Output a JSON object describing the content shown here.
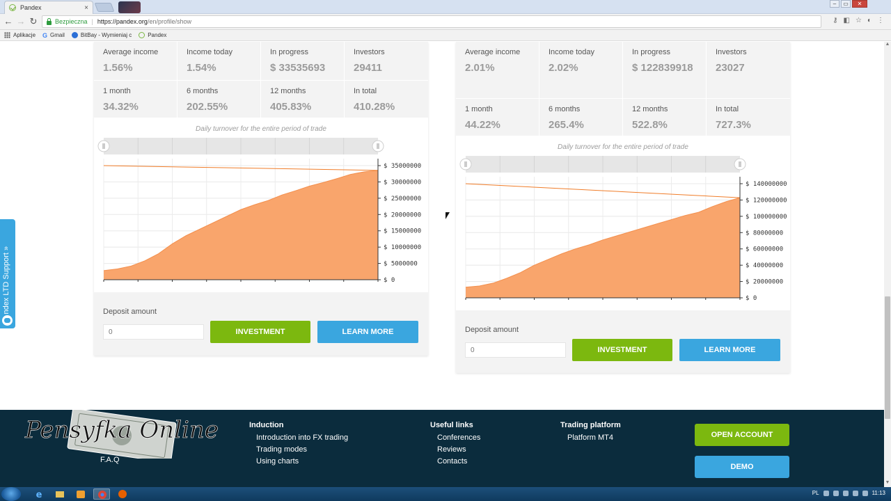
{
  "browser": {
    "tab_title": "Pandex",
    "tab_close": "×",
    "secure_label": "Bezpieczna",
    "url_main": "https://pandex.org",
    "url_rest": "/en/profile/show",
    "bookmarks": [
      "Aplikacje",
      "Gmail",
      "BitBay - Wymieniaj c",
      "Pandex"
    ],
    "nav": {
      "back": "←",
      "forward": "→",
      "reload": "↻"
    },
    "window_controls": [
      "–",
      "▭",
      "✕"
    ]
  },
  "cards": [
    {
      "stats": [
        {
          "label": "Average income",
          "value": "1.56%"
        },
        {
          "label": "Income today",
          "value": "1.54%"
        },
        {
          "label": "In progress",
          "value": "$ 33535693"
        },
        {
          "label": "Investors",
          "value": "29411"
        },
        {
          "label": "1 month",
          "value": "34.32%"
        },
        {
          "label": "6 months",
          "value": "202.55%"
        },
        {
          "label": "12 months",
          "value": "405.83%"
        },
        {
          "label": "In total",
          "value": "410.28%"
        }
      ],
      "chart_title": "Daily turnover for the entire period of trade",
      "deposit_label": "Deposit amount",
      "deposit_placeholder": "0",
      "invest_label": "INVESTMENT",
      "learn_label": "LEARN MORE"
    },
    {
      "stats": [
        {
          "label": "Average income",
          "value": "2.01%"
        },
        {
          "label": "Income today",
          "value": "2.02%"
        },
        {
          "label": "In progress",
          "value": "$ 122839918"
        },
        {
          "label": "Investors",
          "value": "23027"
        },
        {
          "label": "1 month",
          "value": "44.22%"
        },
        {
          "label": "6 months",
          "value": "265.4%"
        },
        {
          "label": "12 months",
          "value": "522.8%"
        },
        {
          "label": "In total",
          "value": "727.3%"
        }
      ],
      "chart_title": "Daily turnover for the entire period of trade",
      "deposit_label": "Deposit amount",
      "deposit_placeholder": "0",
      "invest_label": "INVESTMENT",
      "learn_label": "LEARN MORE"
    }
  ],
  "chart_data": [
    {
      "type": "area",
      "title": "Daily turnover for the entire period of trade",
      "y_ticks": [
        0,
        5000000,
        10000000,
        15000000,
        20000000,
        25000000,
        30000000,
        35000000
      ],
      "y_tick_labels": [
        "$ 0",
        "$ 5000000",
        "$ 10000000",
        "$ 15000000",
        "$ 20000000",
        "$ 25000000",
        "$ 30000000",
        "$ 35000000"
      ],
      "ylim": [
        0,
        35000000
      ],
      "x": [
        0,
        0.05,
        0.1,
        0.15,
        0.2,
        0.25,
        0.3,
        0.35,
        0.4,
        0.45,
        0.5,
        0.55,
        0.6,
        0.65,
        0.7,
        0.75,
        0.8,
        0.85,
        0.9,
        0.95,
        1.0
      ],
      "values": [
        2800000,
        3300000,
        4200000,
        5800000,
        8000000,
        11000000,
        13500000,
        15500000,
        17500000,
        19500000,
        21500000,
        23000000,
        24300000,
        26000000,
        27300000,
        28700000,
        29800000,
        31000000,
        32300000,
        33100000,
        33535693
      ],
      "line_values": [
        35000000,
        33535693
      ],
      "colors": {
        "area": "#f9a56c",
        "line": "#f07c28"
      },
      "grid": true
    },
    {
      "type": "area",
      "title": "Daily turnover for the entire period of trade",
      "y_ticks": [
        0,
        20000000,
        40000000,
        60000000,
        80000000,
        100000000,
        120000000,
        140000000
      ],
      "y_tick_labels": [
        "$ 0",
        "$ 20000000",
        "$ 40000000",
        "$ 60000000",
        "$ 80000000",
        "$ 100000000",
        "$ 120000000",
        "$ 140000000"
      ],
      "ylim": [
        0,
        140000000
      ],
      "x": [
        0,
        0.05,
        0.1,
        0.15,
        0.2,
        0.25,
        0.3,
        0.35,
        0.4,
        0.45,
        0.5,
        0.55,
        0.6,
        0.65,
        0.7,
        0.75,
        0.8,
        0.85,
        0.9,
        0.95,
        1.0
      ],
      "values": [
        13000000,
        14500000,
        18000000,
        24000000,
        31000000,
        40000000,
        47000000,
        54000000,
        60000000,
        65000000,
        71000000,
        76000000,
        81000000,
        86000000,
        91000000,
        96000000,
        101000000,
        105000000,
        112000000,
        118000000,
        122839918
      ],
      "line_values": [
        140000000,
        122839918
      ],
      "colors": {
        "area": "#f9a56c",
        "line": "#f07c28"
      },
      "grid": true
    }
  ],
  "support": {
    "label": "Pandex LTD Support",
    "chevron": "»"
  },
  "footer": {
    "logo_text": "Pensyfka Online",
    "faq": "F.A.Q",
    "columns": [
      {
        "title": "Induction",
        "links": [
          "Introduction into FX trading",
          "Trading modes",
          "Using charts"
        ]
      },
      {
        "title": "Useful links",
        "links": [
          "Conferences",
          "Reviews",
          "Contacts"
        ]
      },
      {
        "title": "Trading platform",
        "links": [
          "Platform MT4"
        ]
      }
    ],
    "open_account": "OPEN ACCOUNT",
    "demo": "DEMO"
  },
  "taskbar": {
    "lang": "PL",
    "time": "11:13"
  }
}
